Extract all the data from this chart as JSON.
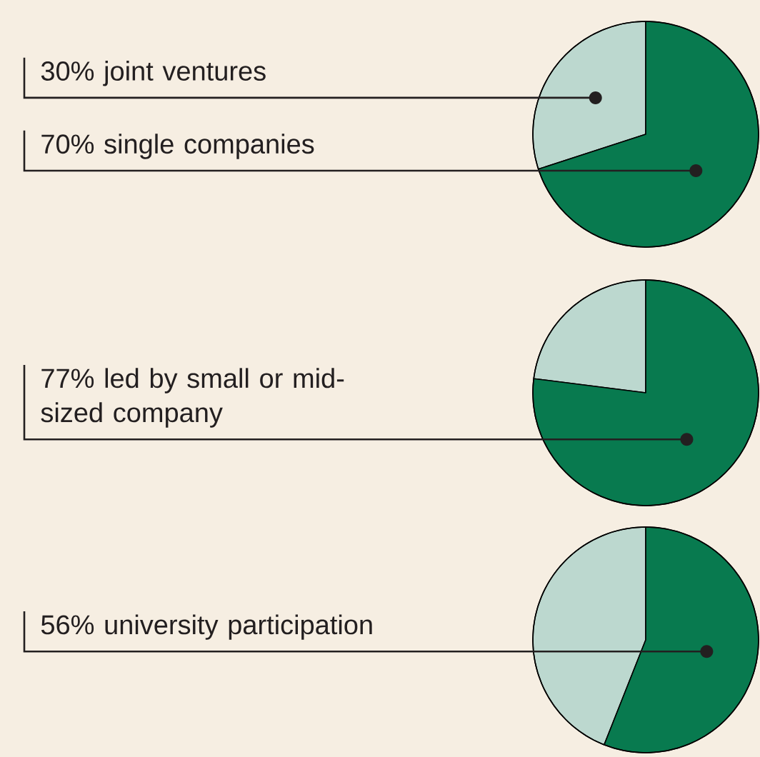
{
  "chart_data": [
    {
      "type": "pie",
      "categories": [
        "30% joint ventures",
        "70% single companies"
      ],
      "values": [
        30,
        70
      ],
      "colors": [
        "#bcd8cf",
        "#087a4f"
      ]
    },
    {
      "type": "pie",
      "categories": [
        null,
        "77% led by small or mid-sized company"
      ],
      "values": [
        23,
        77
      ],
      "colors": [
        "#bcd8cf",
        "#087a4f"
      ]
    },
    {
      "type": "pie",
      "categories": [
        null,
        "56% university participation"
      ],
      "values": [
        44,
        56
      ],
      "colors": [
        "#bcd8cf",
        "#087a4f"
      ]
    }
  ]
}
